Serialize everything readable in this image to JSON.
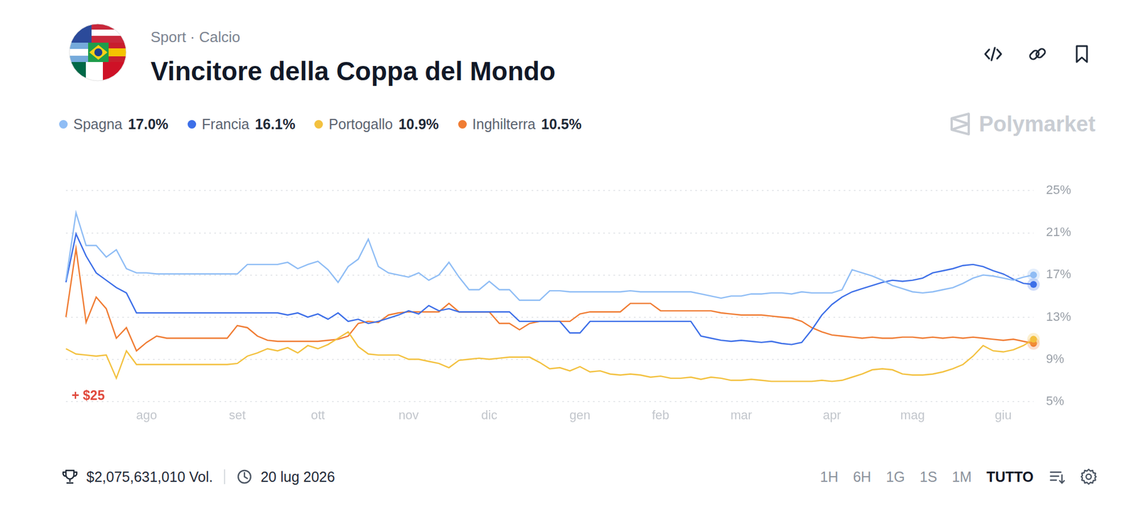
{
  "header": {
    "category": "Sport · Calcio",
    "title": "Vincitore della Coppa del Mondo",
    "watermark": "Polymarket"
  },
  "chart_data": {
    "type": "line",
    "categories": [
      null,
      null,
      null,
      null,
      null,
      null,
      null,
      null,
      "ago",
      null,
      null,
      null,
      null,
      null,
      null,
      null,
      null,
      "set",
      null,
      null,
      null,
      null,
      null,
      null,
      null,
      "ott",
      null,
      null,
      null,
      null,
      null,
      null,
      null,
      null,
      "nov",
      null,
      null,
      null,
      null,
      null,
      null,
      null,
      "dic",
      null,
      null,
      null,
      null,
      null,
      null,
      null,
      null,
      "gen",
      null,
      null,
      null,
      null,
      null,
      null,
      null,
      "feb",
      null,
      null,
      null,
      null,
      null,
      null,
      null,
      "mar",
      null,
      null,
      null,
      null,
      null,
      null,
      null,
      null,
      "apr",
      null,
      null,
      null,
      null,
      null,
      null,
      null,
      "mag",
      null,
      null,
      null,
      null,
      null,
      null,
      null,
      null,
      "giu",
      null,
      null,
      null
    ],
    "series": [
      {
        "name": "Spagna",
        "color": "#8fbdf5",
        "current_label": "17.0%",
        "values": [
          16.5,
          22.9,
          19.8,
          19.8,
          18.7,
          19.4,
          17.6,
          17.2,
          17.2,
          17.1,
          17.1,
          17.1,
          17.1,
          17.1,
          17.1,
          17.1,
          17.1,
          17.1,
          18.0,
          18.0,
          18.0,
          18.0,
          18.2,
          17.6,
          18.0,
          18.3,
          17.5,
          16.3,
          17.8,
          18.5,
          20.4,
          17.8,
          17.2,
          17.0,
          16.8,
          17.2,
          16.5,
          17.0,
          18.2,
          16.8,
          15.6,
          15.6,
          16.4,
          15.6,
          15.6,
          14.6,
          14.6,
          14.6,
          15.5,
          15.5,
          15.4,
          15.4,
          15.4,
          15.4,
          15.4,
          15.4,
          15.5,
          15.4,
          15.4,
          15.4,
          15.4,
          15.4,
          15.4,
          15.2,
          15.0,
          14.8,
          15.0,
          15.0,
          15.2,
          15.2,
          15.3,
          15.3,
          15.2,
          15.4,
          15.3,
          15.3,
          15.3,
          15.6,
          17.5,
          17.2,
          16.9,
          16.5,
          16.0,
          15.7,
          15.4,
          15.3,
          15.4,
          15.6,
          15.8,
          16.2,
          16.7,
          17.0,
          16.9,
          16.7,
          16.5,
          16.8,
          17.0
        ]
      },
      {
        "name": "Francia",
        "color": "#3d6fe8",
        "current_label": "16.1%",
        "values": [
          16.3,
          20.9,
          18.8,
          17.2,
          16.5,
          15.8,
          15.3,
          13.4,
          13.4,
          13.4,
          13.4,
          13.4,
          13.4,
          13.4,
          13.4,
          13.4,
          13.4,
          13.4,
          13.4,
          13.4,
          13.4,
          13.4,
          13.2,
          13.4,
          13.0,
          13.3,
          12.8,
          13.4,
          12.6,
          12.8,
          12.4,
          12.6,
          12.9,
          13.2,
          13.6,
          13.3,
          14.1,
          13.6,
          13.8,
          13.5,
          13.5,
          13.5,
          13.5,
          13.5,
          13.5,
          12.6,
          12.6,
          12.6,
          12.6,
          12.6,
          11.5,
          11.5,
          12.6,
          12.6,
          12.6,
          12.6,
          12.6,
          12.6,
          12.6,
          12.6,
          12.6,
          12.6,
          12.6,
          11.2,
          11.0,
          10.8,
          10.7,
          10.8,
          10.7,
          10.6,
          10.7,
          10.5,
          10.4,
          10.6,
          11.8,
          13.2,
          14.2,
          14.9,
          15.4,
          15.7,
          16.0,
          16.3,
          16.5,
          16.4,
          16.5,
          16.7,
          17.2,
          17.4,
          17.6,
          17.9,
          18.0,
          17.8,
          17.4,
          17.1,
          16.6,
          16.2,
          16.1
        ]
      },
      {
        "name": "Portogallo",
        "color": "#f3c13f",
        "current_label": "10.9%",
        "values": [
          10.0,
          9.5,
          9.4,
          9.3,
          9.4,
          7.2,
          9.8,
          8.5,
          8.5,
          8.5,
          8.5,
          8.5,
          8.5,
          8.5,
          8.5,
          8.5,
          8.5,
          8.6,
          9.3,
          9.6,
          10.0,
          9.8,
          10.1,
          9.6,
          10.3,
          10.0,
          10.4,
          11.0,
          11.6,
          10.2,
          9.5,
          9.4,
          9.4,
          9.4,
          9.0,
          9.0,
          8.8,
          8.6,
          8.2,
          8.9,
          9.0,
          9.1,
          9.0,
          9.1,
          9.2,
          9.2,
          9.2,
          8.7,
          8.1,
          8.2,
          7.9,
          8.3,
          7.8,
          7.9,
          7.6,
          7.5,
          7.6,
          7.5,
          7.3,
          7.4,
          7.2,
          7.2,
          7.3,
          7.1,
          7.3,
          7.2,
          7.0,
          7.0,
          7.1,
          7.0,
          6.9,
          6.9,
          6.9,
          6.9,
          6.9,
          7.0,
          6.9,
          7.0,
          7.3,
          7.6,
          8.0,
          8.1,
          8.0,
          7.6,
          7.5,
          7.5,
          7.6,
          7.8,
          8.1,
          8.5,
          9.3,
          10.3,
          9.8,
          9.7,
          9.9,
          10.3,
          10.9
        ]
      },
      {
        "name": "Inghilterra",
        "color": "#f07c33",
        "current_label": "10.5%",
        "values": [
          13.0,
          19.5,
          12.5,
          14.9,
          13.8,
          11.0,
          12.0,
          9.8,
          10.6,
          11.2,
          11.0,
          11.0,
          11.0,
          11.0,
          11.0,
          11.0,
          11.0,
          12.2,
          12.0,
          11.2,
          10.8,
          10.7,
          10.7,
          10.7,
          10.7,
          10.7,
          10.8,
          10.9,
          11.2,
          12.4,
          12.6,
          12.5,
          13.2,
          13.4,
          13.5,
          13.5,
          13.5,
          13.5,
          14.3,
          13.5,
          13.5,
          13.5,
          13.5,
          12.4,
          12.4,
          11.8,
          12.4,
          12.6,
          12.6,
          12.6,
          12.6,
          13.3,
          13.5,
          13.5,
          13.5,
          13.5,
          14.3,
          14.3,
          14.3,
          13.6,
          13.6,
          13.6,
          13.6,
          13.6,
          13.6,
          13.4,
          13.3,
          13.2,
          13.2,
          13.2,
          13.1,
          13.0,
          12.9,
          12.6,
          12.0,
          11.6,
          11.3,
          11.2,
          11.1,
          11.0,
          11.1,
          11.0,
          11.0,
          11.1,
          11.1,
          11.0,
          11.1,
          11.0,
          11.1,
          11.0,
          11.1,
          11.0,
          10.9,
          10.8,
          10.9,
          10.7,
          10.5
        ]
      }
    ],
    "ylim": [
      5,
      25
    ],
    "yticks": [
      {
        "value": 5,
        "label": "5%"
      },
      {
        "value": 9,
        "label": "9%"
      },
      {
        "value": 13,
        "label": "13%"
      },
      {
        "value": 17,
        "label": "17%"
      },
      {
        "value": 21,
        "label": "21%"
      },
      {
        "value": 25,
        "label": "25%"
      }
    ],
    "grid": true,
    "legend": "top",
    "annotations": [
      {
        "text": "+ $25",
        "color": "#e0493c"
      }
    ]
  },
  "footer": {
    "volume": "$2,075,631,010 Vol.",
    "end_date": "20 lug 2026",
    "time_ranges": [
      "1H",
      "6H",
      "1G",
      "1S",
      "1M",
      "TUTTO"
    ],
    "selected_range": "TUTTO"
  }
}
